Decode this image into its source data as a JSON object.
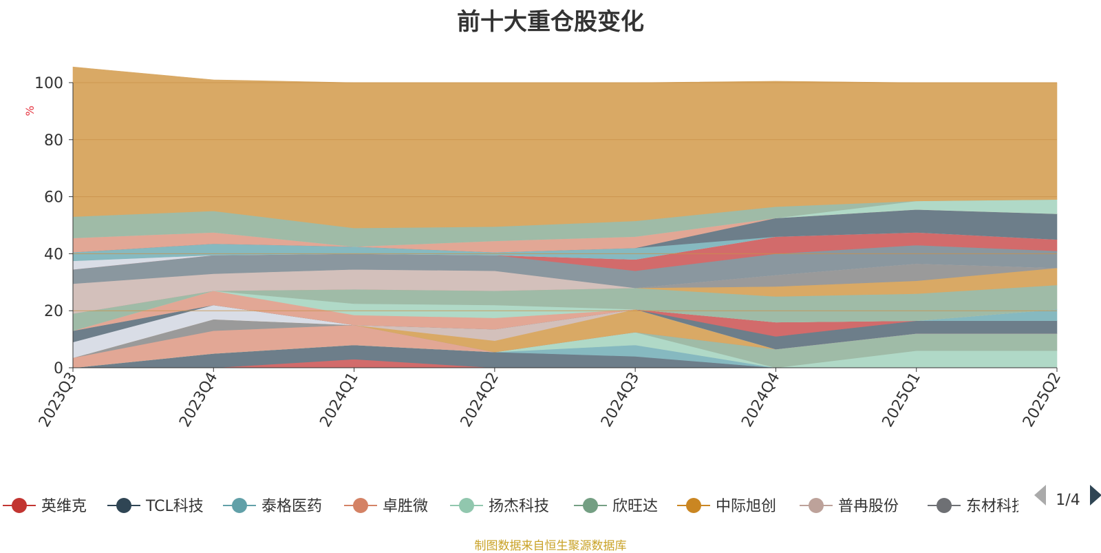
{
  "chart_data": {
    "type": "area",
    "title": "前十大重仓股变化",
    "ylabel": "%",
    "ylim": [
      0,
      100
    ],
    "yticks": [
      0,
      20,
      40,
      60,
      80,
      100
    ],
    "grid": true,
    "legend_position": "bottom",
    "categories": [
      "2023Q3",
      "2023Q4",
      "2024Q1",
      "2024Q2",
      "2024Q3",
      "2024Q4",
      "2025Q1",
      "2025Q2"
    ],
    "layers": [
      {
        "color": "#d26b6b",
        "values": [
          0,
          0,
          3,
          0,
          0,
          0,
          0,
          0
        ]
      },
      {
        "color": "#6d7e8a",
        "values": [
          0,
          5,
          5,
          5.5,
          4,
          0,
          0,
          0
        ]
      },
      {
        "color": "#86b9c0",
        "values": [
          0,
          0,
          0,
          0,
          4,
          0,
          0,
          0
        ]
      },
      {
        "color": "#b0d9c7",
        "values": [
          0,
          0,
          0,
          0,
          4.5,
          0,
          6,
          6
        ]
      },
      {
        "color": "#9fbba7",
        "values": [
          0,
          0,
          0,
          0,
          0,
          6.5,
          6,
          6
        ]
      },
      {
        "color": "#e2a795",
        "values": [
          3.5,
          8,
          7,
          0,
          0,
          0,
          0,
          0
        ]
      },
      {
        "color": "#9a9a9a",
        "values": [
          0,
          4,
          0,
          0,
          0,
          0,
          0,
          0
        ]
      },
      {
        "color": "#d9a965",
        "values": [
          0,
          0,
          0,
          4,
          8,
          0,
          0,
          0
        ]
      },
      {
        "color": "#d3c0bb",
        "values": [
          0,
          0,
          0,
          4,
          0,
          0,
          0,
          0
        ]
      },
      {
        "color": "#d9dde6",
        "values": [
          5.5,
          5,
          0,
          0,
          0,
          0,
          0,
          0
        ]
      },
      {
        "color": "#6d7e8a",
        "values": [
          4,
          0,
          0,
          0,
          0,
          4.5,
          4.5,
          4.5
        ]
      },
      {
        "color": "#d26b6b",
        "values": [
          0,
          0,
          0,
          0,
          0,
          5,
          0,
          0
        ]
      },
      {
        "color": "#86b9c0",
        "values": [
          0,
          0,
          0,
          0,
          0,
          0,
          0,
          4
        ]
      },
      {
        "color": "#e2a795",
        "values": [
          0,
          5,
          3.5,
          4,
          0,
          0,
          0,
          0
        ]
      },
      {
        "color": "#b0d9c7",
        "values": [
          0,
          0,
          4,
          4.5,
          0,
          0,
          0,
          0
        ]
      },
      {
        "color": "#9fbba7",
        "values": [
          6,
          0,
          5,
          5,
          7.5,
          9,
          9.5,
          8.5
        ]
      },
      {
        "color": "#d9a965",
        "values": [
          0,
          0,
          0,
          0,
          0,
          3.5,
          4.5,
          6
        ]
      },
      {
        "color": "#9a9a9a",
        "values": [
          0,
          0,
          0,
          0,
          0,
          4,
          6,
          0
        ]
      },
      {
        "color": "#d3c0bb",
        "values": [
          10.5,
          6,
          7,
          7,
          0,
          0,
          0,
          0
        ]
      },
      {
        "color": "#8a979f",
        "values": [
          5,
          6.5,
          5.5,
          5.5,
          6,
          7.5,
          6.5,
          6
        ]
      },
      {
        "color": "#d26b6b",
        "values": [
          0,
          0,
          0,
          0,
          4,
          6,
          4.5,
          4
        ]
      },
      {
        "color": "#d9dde6",
        "values": [
          3,
          0,
          0,
          0,
          0,
          0,
          0,
          0
        ]
      },
      {
        "color": "#86b9c0",
        "values": [
          3,
          4,
          2.5,
          1,
          4,
          0,
          0,
          0
        ]
      },
      {
        "color": "#6d7e8a",
        "values": [
          0,
          0,
          0,
          0,
          0,
          6.5,
          8,
          9
        ]
      },
      {
        "color": "#e2a795",
        "values": [
          5,
          4,
          0,
          4,
          4,
          0,
          0,
          0
        ]
      },
      {
        "color": "#b0d9c7",
        "values": [
          0,
          0,
          0,
          0,
          0,
          0,
          3,
          5
        ]
      },
      {
        "color": "#9fbba7",
        "values": [
          7.5,
          7.5,
          6.5,
          5,
          5.5,
          4,
          0,
          0
        ]
      },
      {
        "color": "#d9a965",
        "values": [
          52.5,
          46,
          51,
          50.5,
          48.5,
          44,
          41.5,
          41
        ]
      }
    ],
    "legend": [
      {
        "name": "英维克",
        "color": "#c23531"
      },
      {
        "name": "TCL科技",
        "color": "#2f4554"
      },
      {
        "name": "泰格医药",
        "color": "#61a0a8"
      },
      {
        "name": "卓胜微",
        "color": "#d48265"
      },
      {
        "name": "扬杰科技",
        "color": "#91c7ae"
      },
      {
        "name": "欣旺达",
        "color": "#749f83"
      },
      {
        "name": "中际旭创",
        "color": "#ca8622"
      },
      {
        "name": "普冉股份",
        "color": "#bda29a"
      },
      {
        "name": "东材科技",
        "color": "#6e7074"
      }
    ],
    "legend_page": "1/4",
    "axis_label_color": "#e5323e",
    "grid_color": "#c9924a"
  },
  "footer": {
    "text": "制图数据来自恒生聚源数据库",
    "color": "#c9a227"
  }
}
